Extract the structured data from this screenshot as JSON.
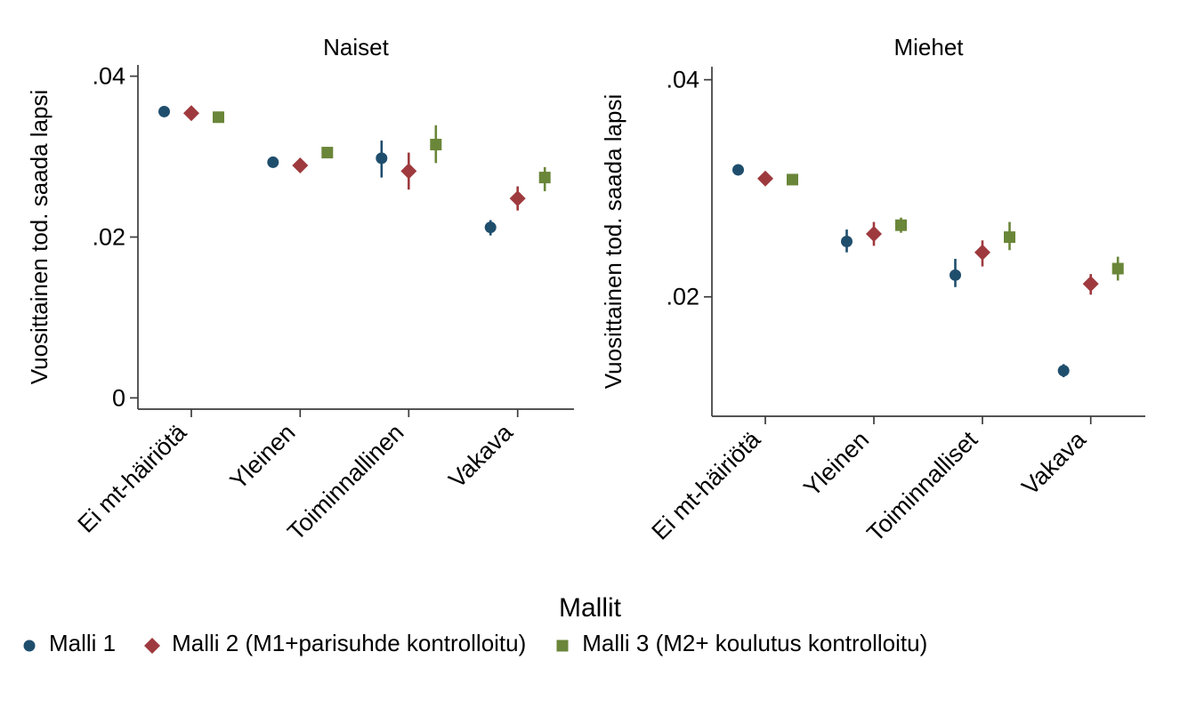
{
  "chart_data": {
    "type": "scatter",
    "grid": false,
    "ylabel": "Vuosittainen tod. saada lapsi",
    "legend": {
      "position": "bottom",
      "title": "Mallit",
      "entries": [
        {
          "label": "Malli 1",
          "marker": "circle",
          "color": "#1f4e6d"
        },
        {
          "label": "Malli 2 (M1+parisuhde kontrolloitu)",
          "marker": "diamond",
          "color": "#9e3a3e"
        },
        {
          "label": "Malli 3 (M2+ koulutus kontrolloitu)",
          "marker": "square",
          "color": "#6a8639"
        }
      ]
    },
    "panels": [
      {
        "title": "Naiset",
        "categories": [
          "Ei mt-häiriötä",
          "Yleinen",
          "Toiminnallinen",
          "Vakava"
        ],
        "ylim": [
          -0.0014,
          0.0414
        ],
        "yticks": [
          {
            "value": 0,
            "label": "0"
          },
          {
            "value": 0.02,
            "label": ".02"
          },
          {
            "value": 0.04,
            "label": ".04"
          }
        ],
        "series": [
          {
            "name": "Malli 1",
            "marker": "circle",
            "color": "#1f4e6d",
            "values": [
              0.0356,
              0.0293,
              0.0298,
              0.0212
            ],
            "ci_low": [
              0.0351,
              0.0287,
              0.0274,
              0.0202
            ],
            "ci_high": [
              0.0361,
              0.0299,
              0.032,
              0.0221
            ]
          },
          {
            "name": "Malli 2",
            "marker": "diamond",
            "color": "#9e3a3e",
            "values": [
              0.0354,
              0.0289,
              0.0282,
              0.0248
            ],
            "ci_low": [
              0.0349,
              0.0283,
              0.0259,
              0.0233
            ],
            "ci_high": [
              0.0359,
              0.0295,
              0.0305,
              0.0263
            ]
          },
          {
            "name": "Malli 3",
            "marker": "square",
            "color": "#6a8639",
            "values": [
              0.0349,
              0.0305,
              0.0315,
              0.0274
            ],
            "ci_low": [
              0.0344,
              0.0298,
              0.0292,
              0.0257
            ],
            "ci_high": [
              0.0354,
              0.0312,
              0.0339,
              0.0287
            ]
          }
        ]
      },
      {
        "title": "Miehet",
        "categories": [
          "Ei mt-häiriötä",
          "Yleinen",
          "Toiminnalliset",
          "Vakava"
        ],
        "ylim": [
          0.009,
          0.0412
        ],
        "yticks": [
          {
            "value": 0.02,
            "label": ".02"
          },
          {
            "value": 0.04,
            "label": ".04"
          }
        ],
        "series": [
          {
            "name": "Malli 1",
            "marker": "circle",
            "color": "#1f4e6d",
            "values": [
              0.0317,
              0.0251,
              0.022,
              0.0132
            ],
            "ci_low": [
              0.0313,
              0.0241,
              0.0209,
              0.0126
            ],
            "ci_high": [
              0.0321,
              0.0262,
              0.0235,
              0.0138
            ]
          },
          {
            "name": "Malli 2",
            "marker": "diamond",
            "color": "#9e3a3e",
            "values": [
              0.0309,
              0.0258,
              0.0241,
              0.0212
            ],
            "ci_low": [
              0.0305,
              0.0247,
              0.0228,
              0.0202
            ],
            "ci_high": [
              0.0313,
              0.0269,
              0.0252,
              0.0221
            ]
          },
          {
            "name": "Malli 3",
            "marker": "square",
            "color": "#6a8639",
            "values": [
              0.0308,
              0.0266,
              0.0255,
              0.0226
            ],
            "ci_low": [
              0.0304,
              0.0259,
              0.0243,
              0.0215
            ],
            "ci_high": [
              0.0312,
              0.0273,
              0.0269,
              0.0237
            ]
          }
        ]
      }
    ]
  }
}
